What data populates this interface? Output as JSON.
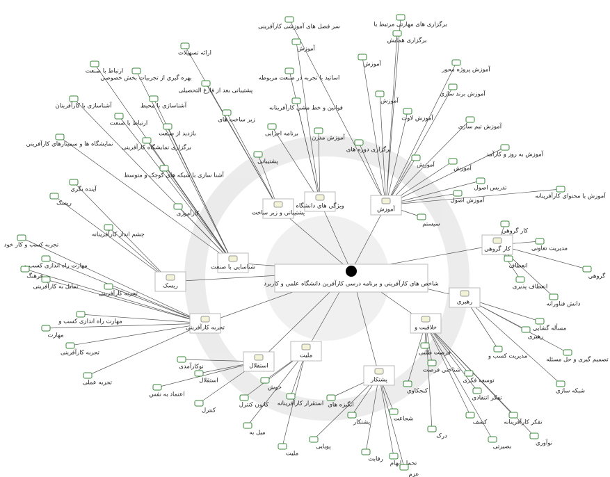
{
  "center": {
    "label": "شاخص های کارآفرینی و برنامه درسی کارآفرین دانشگاه علمی و کاربرد"
  },
  "hubs": [
    {
      "label": "آموزش",
      "children": [
        "سر فصل های آموزشی کارآفرینی",
        "برگزاری های مهارتی مرتبط با",
        "برگزاری همایش",
        "آموزش",
        "آموزش پروژه محور",
        "آموزش",
        "آموزش برند سازی",
        "آموزش لاوت",
        "آموزش تیم سازی",
        "برگزاری دوره های",
        "آموزش به روز و کارآمد",
        "آموزش",
        "آموزش",
        "تدریس اصول",
        "آموزش اصول",
        "آموزش با محتوای کارآفرینانه",
        "سیستم"
      ]
    },
    {
      "label": "ویژگی های دانشگاه",
      "children": [
        "آموزش",
        "اساتید با تجربه در صنعت مربوطه",
        "قوانین و خط مشی کارآفرینانه",
        "برنامه اجرایی",
        "آموزش مدرن"
      ]
    },
    {
      "label": "پشتیبانی و زیر ساخت",
      "children": [
        "ارائه تسهیلات",
        "پشتیبانی بعد از فارغ التحصیلی",
        "زیر ساخت های",
        "پشتیبانی"
      ]
    },
    {
      "label": "شناسایی با صنعت",
      "children": [
        "ارتباط با صنعت",
        "بهره گیری از تجربیات بخش خصوصی",
        "آشناسازی با محیط",
        "آشناسازی با کارآفرینان",
        "ارتباط با صنعت",
        "بازدید از صنعت",
        "برگزاری نمایشگاه کارآفرینی",
        "نمایشگاه ها و سمینارهای کارآفرینی",
        "آشنا سازی با شبکه های کوچک و متوسط",
        "کارآموزی"
      ]
    },
    {
      "label": "ریسک",
      "children": [
        "آینده نگری",
        "ریسک",
        "چشم انداز کارآفرینانه"
      ]
    },
    {
      "label": "تجربه کارآفرینی",
      "children": [
        "تجربه کسب و کار خود",
        "مهارت راه اندازی کسب و",
        "فرهنگ",
        "تمایل به کارآفرینی",
        "تجربه کارآفرینی",
        "مهارت راه اندازی کسب و",
        "مهارت",
        "تجربه کارآفرینی",
        "تجربه عملی"
      ]
    },
    {
      "label": "استقلال",
      "children": [
        "نوکارآمدی",
        "استقلال",
        "اعتماد به نفس",
        "کنترل"
      ]
    },
    {
      "label": "ملیت",
      "children": [
        "خوش",
        "کانون کنترل",
        "استقرار کارآفرینانه",
        "میل به",
        "ملیت"
      ]
    },
    {
      "label": "پشتکار",
      "children": [
        "انگیزه های",
        "پشتکار",
        "شجاعت",
        "پویایی",
        "رقابت",
        "تحمل ابهام",
        "عزم"
      ]
    },
    {
      "label": "خلاقیت و",
      "children": [
        "فرصت طلبی",
        "شناختی فرصت",
        "توسعه فکری",
        "کنجکاوی",
        "تفکر انتقادی",
        "کشف",
        "تفکر کارآفرینانه",
        "درک",
        "نوآوری",
        "بصیرتی"
      ]
    },
    {
      "label": "رهبری",
      "children": [
        "مسأله گشایی",
        "رهبری",
        "تصمیم گیری و حل مسئله",
        "مدیریت کسب و",
        "شبکه سازی"
      ]
    },
    {
      "label": "کار گروهی",
      "children": [
        "کار گروهی",
        "مدیریت تعاونی",
        "انعطاف",
        "انعطاف پذیری",
        "گروهی",
        "دانش فناورانه"
      ]
    }
  ]
}
